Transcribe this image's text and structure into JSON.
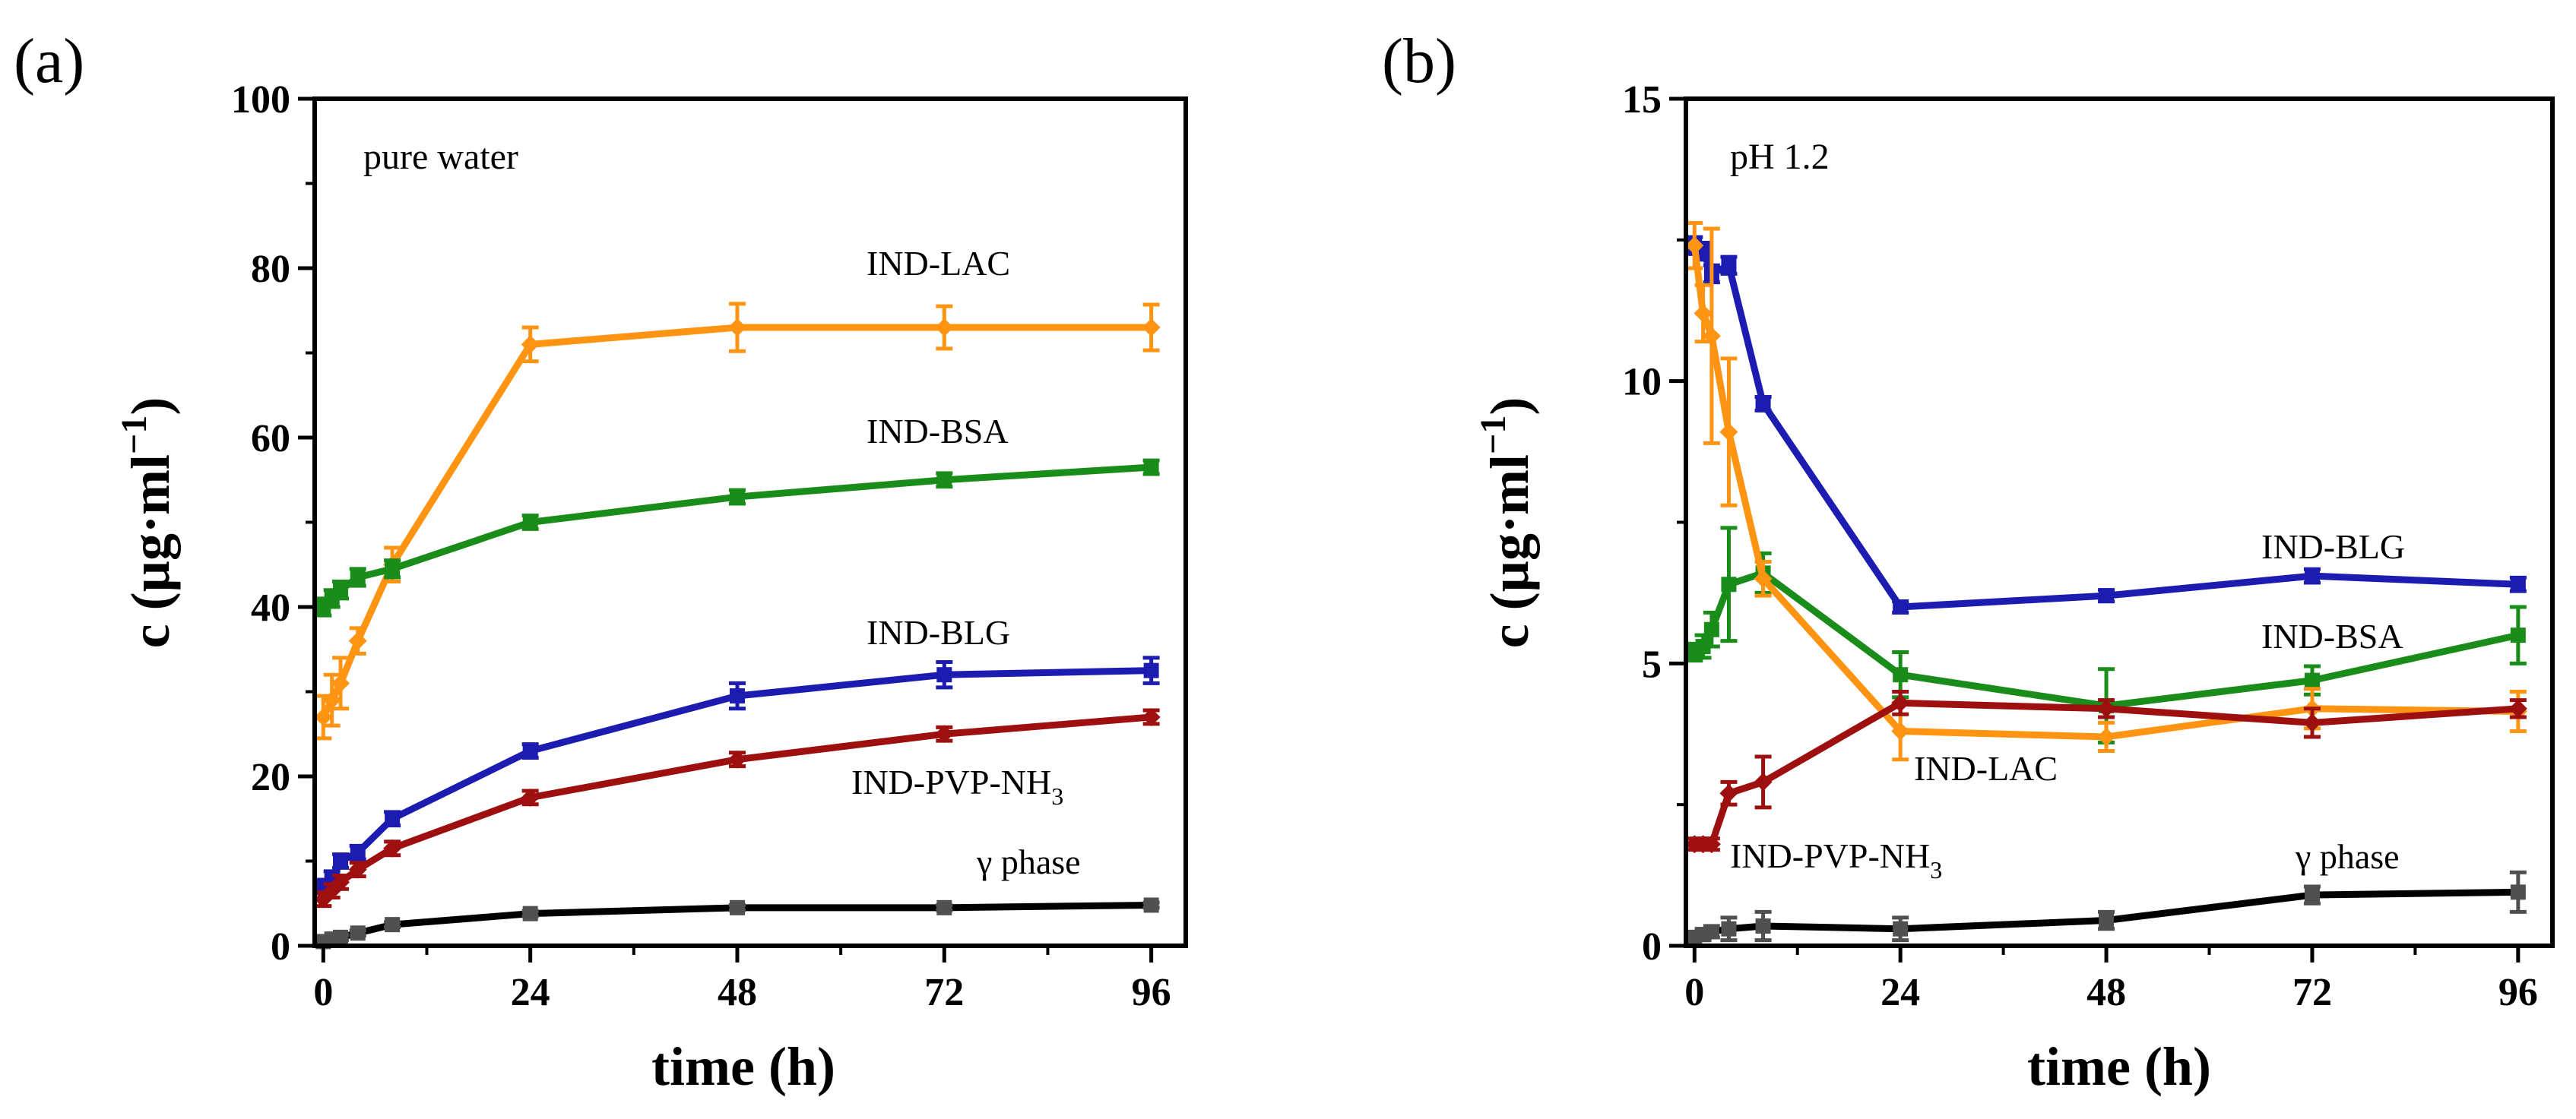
{
  "chart_data": [
    {
      "type": "line",
      "panel_label": "(a)",
      "title": "",
      "annotation": "pure water",
      "xlabel": "time (h)",
      "ylabel_main": "c (µg·ml",
      "ylabel_sup": "−1",
      "ylabel_close": ")",
      "xlim": [
        -1,
        100
      ],
      "ylim": [
        0,
        100
      ],
      "xticks": [
        0,
        24,
        48,
        72,
        96
      ],
      "yticks": [
        0,
        20,
        40,
        60,
        80,
        100
      ],
      "grid": false,
      "series": [
        {
          "name": "IND-LAC",
          "label_lines": [
            "IND-LAC"
          ],
          "color": "#FF9412",
          "marker": "diamond",
          "x": [
            0,
            1,
            2,
            4,
            8,
            24,
            48,
            72,
            96
          ],
          "y": [
            27,
            29,
            31,
            36,
            45,
            71,
            73,
            73,
            73
          ],
          "err": [
            2.5,
            3,
            3,
            1.5,
            2,
            2,
            2.8,
            2.5,
            2.7
          ]
        },
        {
          "name": "IND-BSA",
          "label_lines": [
            "IND-BSA"
          ],
          "color": "#1A8C1A",
          "marker": "square",
          "x": [
            0,
            1,
            2,
            4,
            8,
            24,
            48,
            72,
            96
          ],
          "y": [
            40,
            41,
            42,
            43.5,
            44.5,
            50,
            53,
            55,
            56.5
          ],
          "err": [
            1,
            1,
            1,
            1,
            1,
            0.8,
            0.8,
            0.8,
            0.8
          ]
        },
        {
          "name": "IND-BLG",
          "label_lines": [
            "IND-BLG"
          ],
          "color": "#1C1CB0",
          "marker": "square",
          "x": [
            0,
            1,
            2,
            4,
            8,
            24,
            48,
            72,
            96
          ],
          "y": [
            7,
            8,
            10,
            11,
            15,
            23,
            29.5,
            32,
            32.5
          ],
          "err": [
            0.8,
            0.8,
            0.8,
            0.8,
            0.8,
            0.8,
            1.5,
            1.5,
            1.5
          ]
        },
        {
          "name": "IND-PVP-NH3",
          "label_lines": [
            "IND-PVP-NH",
            "3"
          ],
          "color": "#9E0F0F",
          "marker": "diamond",
          "x": [
            0,
            1,
            2,
            4,
            8,
            24,
            48,
            72,
            96
          ],
          "y": [
            5.5,
            6.5,
            7.5,
            9,
            11.5,
            17.5,
            22,
            25,
            27
          ],
          "err": [
            0.8,
            0.8,
            0.8,
            0.8,
            0.8,
            0.8,
            0.8,
            0.8,
            0.8
          ]
        },
        {
          "name": "γ phase",
          "label_lines": [
            "γ phase"
          ],
          "color": "#505050",
          "line_color": "#000000",
          "marker": "square",
          "x": [
            0,
            1,
            2,
            4,
            8,
            24,
            48,
            72,
            96
          ],
          "y": [
            0.5,
            0.8,
            1,
            1.5,
            2.5,
            3.8,
            4.5,
            4.5,
            4.8
          ],
          "err": [
            0.3,
            0.3,
            0.3,
            0.3,
            0.3,
            0.3,
            0.3,
            0.3,
            0.3
          ]
        }
      ]
    },
    {
      "type": "line",
      "panel_label": "(b)",
      "title": "",
      "annotation": "pH 1.2",
      "xlabel": "time (h)",
      "ylabel_main": "c (µg·ml",
      "ylabel_sup": "−1",
      "ylabel_close": ")",
      "xlim": [
        -1,
        100
      ],
      "ylim": [
        0,
        15
      ],
      "xticks": [
        0,
        24,
        48,
        72,
        96
      ],
      "yticks": [
        0,
        5,
        10,
        15
      ],
      "grid": false,
      "series": [
        {
          "name": "IND-BLG",
          "label_lines": [
            "IND-BLG"
          ],
          "color": "#1C1CB0",
          "marker": "square",
          "x": [
            0,
            1,
            2,
            4,
            8,
            24,
            48,
            72,
            96
          ],
          "y": [
            12.4,
            12.3,
            11.9,
            12.05,
            9.6,
            6.0,
            6.2,
            6.55,
            6.4
          ],
          "err": [
            0.15,
            0.15,
            0.15,
            0.15,
            0.12,
            0.1,
            0.1,
            0.12,
            0.12
          ]
        },
        {
          "name": "IND-BSA",
          "label_lines": [
            "IND-BSA"
          ],
          "color": "#1A8C1A",
          "marker": "square",
          "x": [
            0,
            1,
            2,
            4,
            8,
            24,
            48,
            72,
            96
          ],
          "y": [
            5.2,
            5.3,
            5.6,
            6.4,
            6.6,
            4.8,
            4.25,
            4.7,
            5.5
          ],
          "err": [
            0.15,
            0.2,
            0.3,
            1.0,
            0.35,
            0.4,
            0.65,
            0.25,
            0.5
          ]
        },
        {
          "name": "IND-LAC",
          "label_lines": [
            "IND-LAC"
          ],
          "color": "#FF9412",
          "marker": "diamond",
          "x": [
            0,
            1,
            2,
            4,
            8,
            24,
            48,
            72,
            96
          ],
          "y": [
            12.4,
            11.2,
            10.8,
            9.1,
            6.5,
            3.8,
            3.7,
            4.2,
            4.15
          ],
          "err": [
            0.4,
            0.5,
            1.9,
            1.3,
            0.3,
            0.5,
            0.25,
            0.35,
            0.35
          ]
        },
        {
          "name": "IND-PVP-NH3",
          "label_lines": [
            "IND-PVP-NH",
            "3"
          ],
          "color": "#9E0F0F",
          "marker": "diamond",
          "x": [
            0,
            1,
            2,
            4,
            8,
            24,
            48,
            72,
            96
          ],
          "y": [
            1.8,
            1.8,
            1.8,
            2.7,
            2.9,
            4.3,
            4.2,
            3.95,
            4.2
          ],
          "err": [
            0.1,
            0.1,
            0.1,
            0.2,
            0.45,
            0.2,
            0.15,
            0.25,
            0.15
          ]
        },
        {
          "name": "γ phase",
          "label_lines": [
            "γ phase"
          ],
          "color": "#505050",
          "line_color": "#000000",
          "marker": "square",
          "x": [
            0,
            1,
            2,
            4,
            8,
            24,
            48,
            72,
            96
          ],
          "y": [
            0.15,
            0.2,
            0.25,
            0.3,
            0.35,
            0.3,
            0.45,
            0.9,
            0.95
          ],
          "err": [
            0.05,
            0.1,
            0.1,
            0.2,
            0.25,
            0.2,
            0.15,
            0.15,
            0.35
          ]
        }
      ]
    }
  ]
}
